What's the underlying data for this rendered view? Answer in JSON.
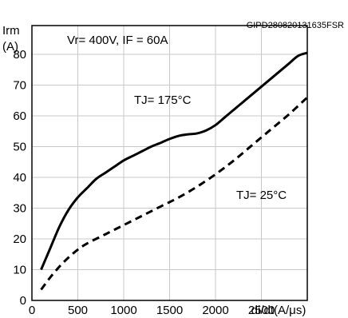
{
  "chart_data": {
    "type": "line",
    "id_text": "GIPD280820131635FSR",
    "condition_text": "Vr= 400V, IF = 60A",
    "ylabel_top": "Irm",
    "ylabel_unit": "(A)",
    "xlabel": "di/dt(A/μs)",
    "xlim": [
      0,
      3000
    ],
    "ylim": [
      0,
      80
    ],
    "x_ticks": [
      "0",
      "500",
      "1000",
      "1500",
      "2000",
      "2500"
    ],
    "y_ticks": [
      "0",
      "10",
      "20",
      "30",
      "40",
      "50",
      "60",
      "70",
      "80"
    ],
    "grid": true,
    "series": [
      {
        "name": "TJ= 175°C",
        "style": "solid",
        "color": "#000000",
        "x": [
          100,
          200,
          300,
          400,
          500,
          600,
          700,
          800,
          900,
          1000,
          1100,
          1200,
          1300,
          1400,
          1500,
          1600,
          1700,
          1800,
          1900,
          2000,
          2100,
          2200,
          2300,
          2400,
          2500,
          2600,
          2700,
          2800,
          2900,
          3000
        ],
        "y": [
          10,
          17,
          24,
          29.5,
          33.5,
          36.5,
          39.5,
          41.5,
          43.5,
          45.5,
          47,
          48.5,
          50,
          51.2,
          52.5,
          53.5,
          54,
          54.3,
          55.3,
          57,
          59.5,
          62,
          64.5,
          67,
          69.5,
          72,
          74.5,
          77,
          79.5,
          80.5
        ]
      },
      {
        "name": "TJ= 25°C",
        "style": "dashed",
        "color": "#000000",
        "x": [
          100,
          200,
          300,
          400,
          500,
          600,
          800,
          1000,
          1200,
          1400,
          1600,
          1800,
          2000,
          2200,
          2400,
          2600,
          2800,
          3000
        ],
        "y": [
          3.5,
          7.5,
          11,
          14,
          16.5,
          18.5,
          21.5,
          24.5,
          27.5,
          30.5,
          33.5,
          37,
          41,
          45.5,
          50.5,
          55.5,
          60.5,
          66
        ]
      }
    ],
    "annotations": [
      {
        "text": "TJ= 175°C",
        "series": 0
      },
      {
        "text": "TJ= 25°C",
        "series": 1
      }
    ]
  }
}
